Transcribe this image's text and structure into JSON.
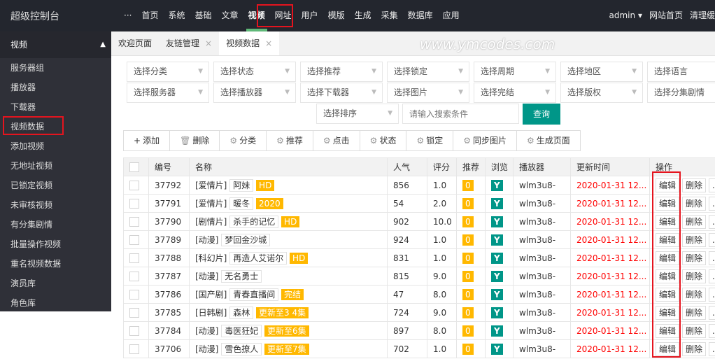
{
  "header": {
    "title": "超级控制台",
    "more": "···",
    "nav": [
      "首页",
      "系统",
      "基础",
      "文章",
      "视频",
      "网址",
      "用户",
      "模版",
      "生成",
      "采集",
      "数据库",
      "应用"
    ],
    "active": "视频",
    "user": "admin",
    "links": [
      "网站首页",
      "清理缓"
    ]
  },
  "sidebar": {
    "title": "视频",
    "items": [
      "服务器组",
      "播放器",
      "下载器",
      "视频数据",
      "添加视频",
      "无地址视频",
      "已锁定视频",
      "未审核视频",
      "有分集剧情",
      "批量操作视频",
      "重名视频数据",
      "演员库",
      "角色库"
    ]
  },
  "tabs": [
    {
      "label": "欢迎页面",
      "closable": false
    },
    {
      "label": "友链管理",
      "closable": true
    },
    {
      "label": "视频数据",
      "closable": true,
      "active": true
    }
  ],
  "filters": {
    "row1": [
      "选择分类",
      "选择状态",
      "选择推荐",
      "选择锁定",
      "选择周期",
      "选择地区",
      "选择语言"
    ],
    "row2": [
      "选择服务器",
      "选择播放器",
      "选择下载器",
      "选择图片",
      "选择完结",
      "选择版权",
      "选择分集剧情"
    ],
    "sort": "选择排序",
    "search_placeholder": "请输入搜索条件",
    "search_button": "查询"
  },
  "toolbar": [
    {
      "icon": "plus-icon",
      "label": "添加"
    },
    {
      "icon": "trash-icon",
      "label": "删除"
    },
    {
      "icon": "gear-icon",
      "label": "分类"
    },
    {
      "icon": "gear-icon",
      "label": "推荐"
    },
    {
      "icon": "gear-icon",
      "label": "点击"
    },
    {
      "icon": "gear-icon",
      "label": "状态"
    },
    {
      "icon": "gear-icon",
      "label": "锁定"
    },
    {
      "icon": "gear-icon",
      "label": "同步图片"
    },
    {
      "icon": "gear-icon",
      "label": "生成页面"
    }
  ],
  "table": {
    "headers": [
      "编号",
      "名称",
      "人气",
      "评分",
      "推荐",
      "浏览",
      "播放器",
      "更新时间",
      "操作"
    ],
    "rows": [
      {
        "id": "37792",
        "cat": "[爱情片]",
        "name": "阿妹",
        "tag": "HD",
        "hits": "856",
        "score": "1.0",
        "rec": "0",
        "view": "Y",
        "player": "wlm3u8-",
        "time": "2020-01-31 12..."
      },
      {
        "id": "37791",
        "cat": "[爱情片]",
        "name": "暖冬",
        "tag": "2020",
        "hits": "54",
        "score": "2.0",
        "rec": "0",
        "view": "Y",
        "player": "wlm3u8-",
        "time": "2020-01-31 12..."
      },
      {
        "id": "37790",
        "cat": "[剧情片]",
        "name": "杀手的记忆",
        "tag": "HD",
        "hits": "902",
        "score": "10.0",
        "rec": "0",
        "view": "Y",
        "player": "wlm3u8-",
        "time": "2020-01-31 12..."
      },
      {
        "id": "37789",
        "cat": "[动漫]",
        "name": "梦回金沙城",
        "tag": "",
        "hits": "924",
        "score": "1.0",
        "rec": "0",
        "view": "Y",
        "player": "wlm3u8-",
        "time": "2020-01-31 12..."
      },
      {
        "id": "37788",
        "cat": "[科幻片]",
        "name": "再造人艾诺尔",
        "tag": "HD",
        "hits": "831",
        "score": "1.0",
        "rec": "0",
        "view": "Y",
        "player": "wlm3u8-",
        "time": "2020-01-31 12..."
      },
      {
        "id": "37787",
        "cat": "[动漫]",
        "name": "无名勇士",
        "tag": "",
        "hits": "815",
        "score": "9.0",
        "rec": "0",
        "view": "Y",
        "player": "wlm3u8-",
        "time": "2020-01-31 12..."
      },
      {
        "id": "37786",
        "cat": "[国产剧]",
        "name": "青春直播间",
        "tag": "完结",
        "hits": "47",
        "score": "8.0",
        "rec": "0",
        "view": "Y",
        "player": "wlm3u8-",
        "time": "2020-01-31 12..."
      },
      {
        "id": "37785",
        "cat": "[日韩剧]",
        "name": "森林",
        "tag": "更新至3 4集",
        "hits": "724",
        "score": "9.0",
        "rec": "0",
        "view": "Y",
        "player": "wlm3u8-",
        "time": "2020-01-31 12..."
      },
      {
        "id": "37784",
        "cat": "[动漫]",
        "name": "毒医狂妃",
        "tag": "更新至6集",
        "hits": "897",
        "score": "8.0",
        "rec": "0",
        "view": "Y",
        "player": "wlm3u8-",
        "time": "2020-01-31 12..."
      },
      {
        "id": "37706",
        "cat": "[动漫]",
        "name": "雪色撩人",
        "tag": "更新至7集",
        "hits": "702",
        "score": "1.0",
        "rec": "0",
        "view": "Y",
        "player": "wlm3u8-",
        "time": "2020-01-31 12..."
      }
    ],
    "actions": [
      "编辑",
      "删除",
      "..."
    ]
  },
  "watermark": "www.ymcodes.com",
  "colors": {
    "topbar": "#23262e",
    "accent": "#009688",
    "tag": "#ffb800",
    "time": "#ff0000",
    "highlight": "#e5141e"
  }
}
